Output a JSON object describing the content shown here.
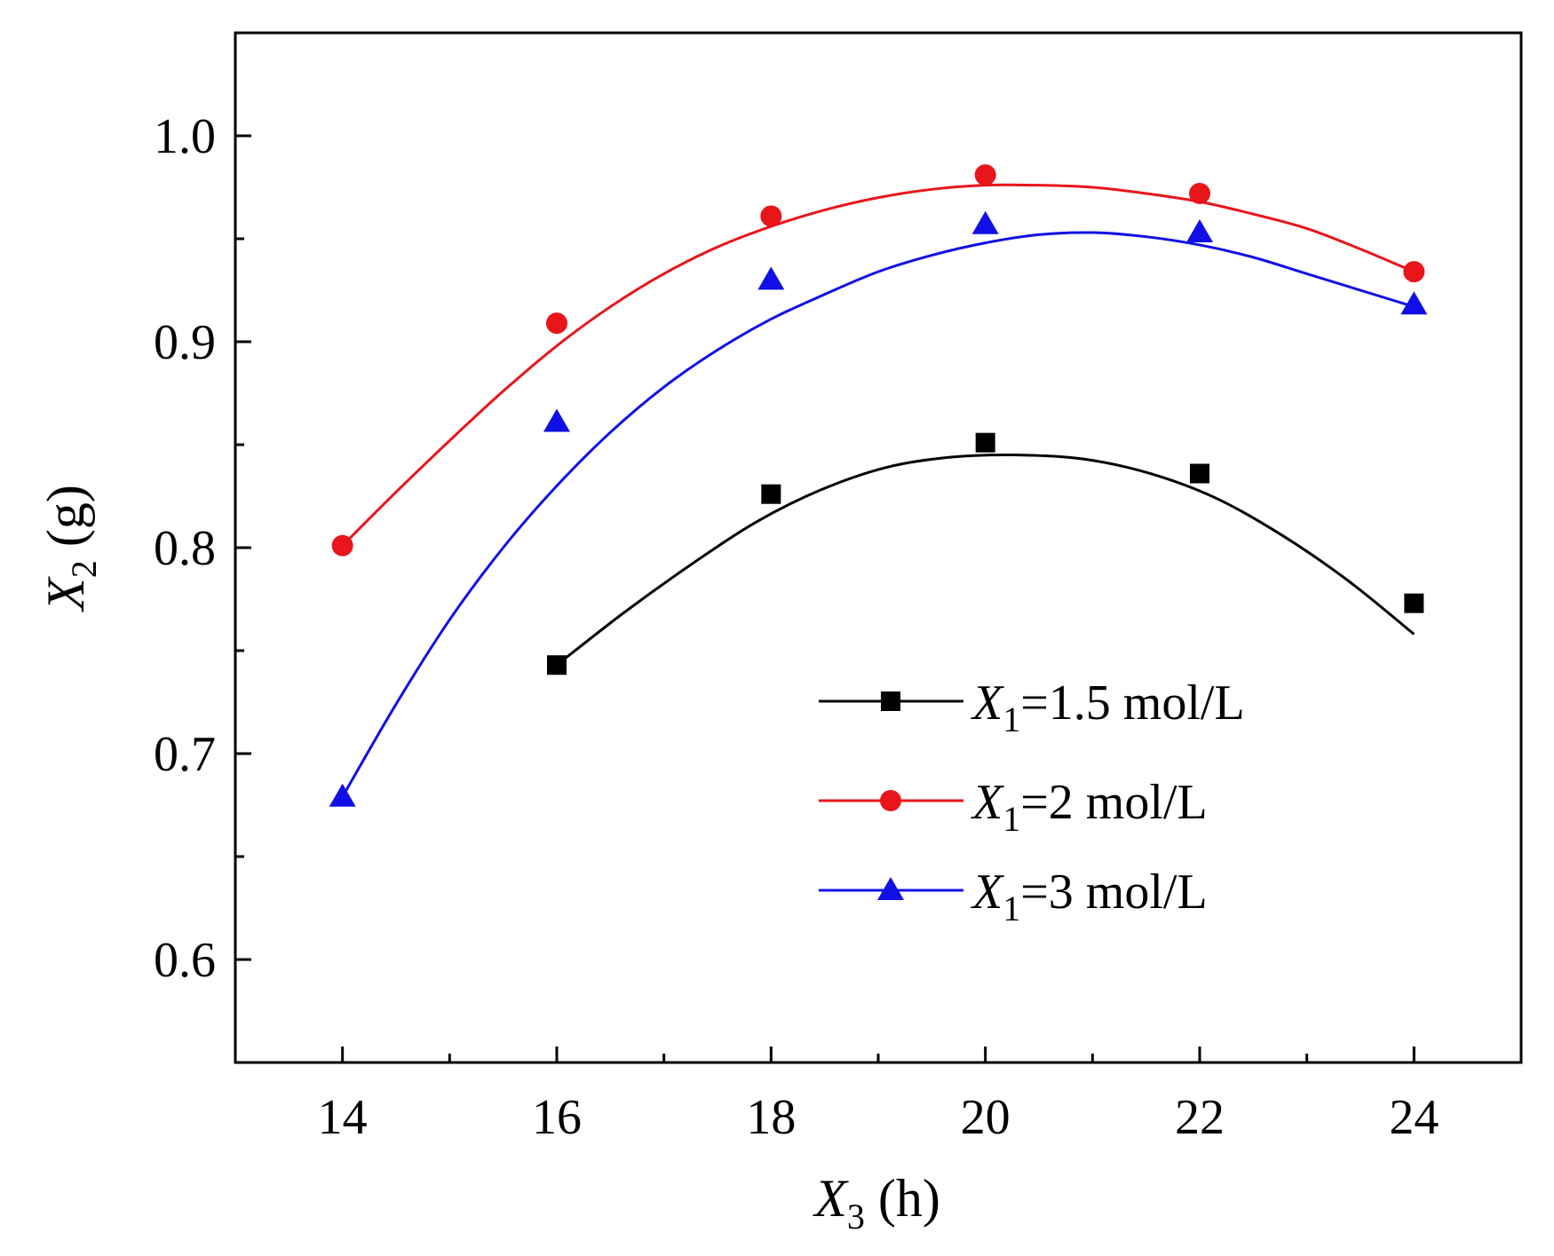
{
  "chart_data": {
    "type": "scatter",
    "title": "",
    "xlabel": {
      "var": "X",
      "sub": "3",
      "unit": " (h)"
    },
    "ylabel": {
      "var": "X",
      "sub": "2",
      "unit": " (g)"
    },
    "xlim": [
      13,
      25
    ],
    "ylim": [
      0.55,
      1.05
    ],
    "xticks": [
      14,
      16,
      18,
      20,
      22,
      24
    ],
    "xtick_labels": [
      "14",
      "16",
      "18",
      "20",
      "22",
      "24"
    ],
    "yticks": [
      0.6,
      0.7,
      0.8,
      0.9,
      1.0
    ],
    "ytick_labels": [
      "0.6",
      "0.7",
      "0.8",
      "0.9",
      "1.0"
    ],
    "grid": false,
    "legend_position": "bottom-right",
    "series": [
      {
        "name": "X1=1.5 mol/L",
        "label_var": "X",
        "label_sub": "1",
        "label_rest": "=1.5 mol/L",
        "color": "#000000",
        "marker": "square",
        "x": [
          16,
          18,
          20,
          22,
          24
        ],
        "values": [
          0.743,
          0.826,
          0.851,
          0.836,
          0.773
        ],
        "fit": [
          0.743,
          0.768,
          0.791,
          0.812,
          0.828,
          0.839,
          0.844,
          0.845,
          0.843,
          0.836,
          0.824,
          0.806,
          0.784,
          0.758
        ]
      },
      {
        "name": "X1=2 mol/L",
        "label_var": "X",
        "label_sub": "1",
        "label_rest": "=2 mol/L",
        "color": "#e8151b",
        "marker": "circle",
        "x": [
          14,
          16,
          18,
          20,
          22,
          24
        ],
        "values": [
          0.801,
          0.909,
          0.961,
          0.981,
          0.972,
          0.934
        ],
        "fit": [
          0.801,
          0.827,
          0.852,
          0.876,
          0.898,
          0.917,
          0.933,
          0.946,
          0.956,
          0.964,
          0.97,
          0.974,
          0.976,
          0.976,
          0.975,
          0.972,
          0.968,
          0.962,
          0.955,
          0.945,
          0.934
        ]
      },
      {
        "name": "X1=3 mol/L",
        "label_var": "X",
        "label_sub": "1",
        "label_rest": "=3 mol/L",
        "color": "#1010e6",
        "marker": "triangle",
        "x": [
          14,
          16,
          18,
          20,
          22,
          24
        ],
        "values": [
          0.679,
          0.861,
          0.93,
          0.957,
          0.953,
          0.918
        ],
        "fit": [
          0.679,
          0.724,
          0.765,
          0.8,
          0.83,
          0.856,
          0.878,
          0.896,
          0.911,
          0.923,
          0.934,
          0.942,
          0.948,
          0.952,
          0.953,
          0.951,
          0.947,
          0.941,
          0.933,
          0.925,
          0.917
        ]
      }
    ]
  }
}
